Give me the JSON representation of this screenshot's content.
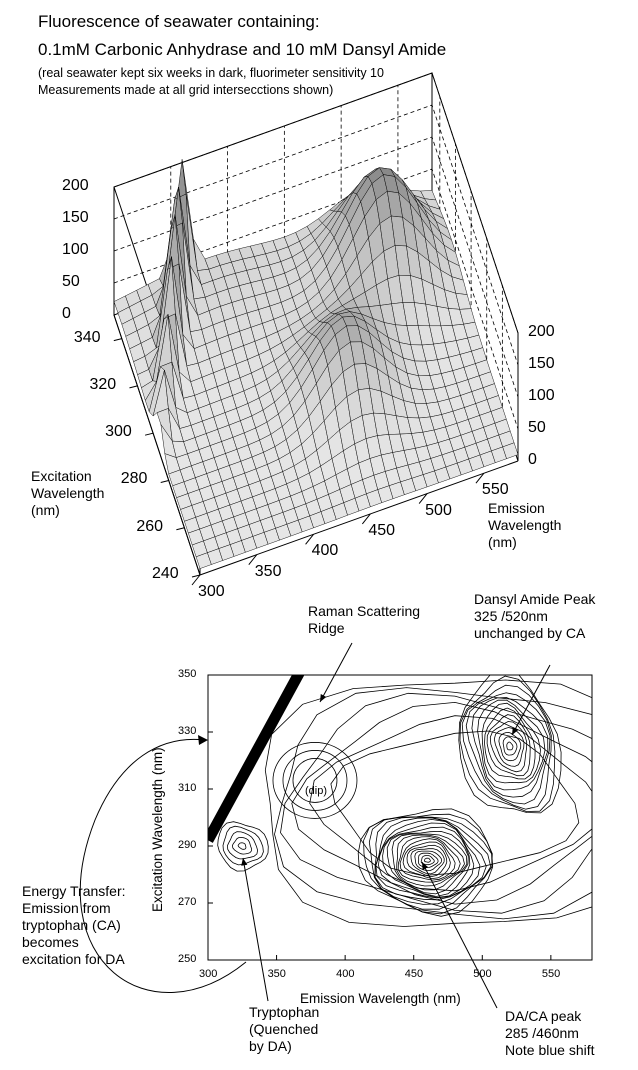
{
  "title": {
    "line1": "Fluorescence of seawater containing:",
    "line2": "0.1mM Carbonic Anhydrase and 10 mM  Dansyl Amide",
    "note1": "(real seawater kept six weeks in dark, fluorimeter sensitivity 10",
    "note2": "Measurements made at all grid intersecctions shown)"
  },
  "chart_data": [
    {
      "type": "surface3d",
      "title": "Fluorescence of seawater containing: 0.1mM Carbonic Anhydrase and 10 mM  Dansyl Amide",
      "xlabel": "Emission Wavelength (nm)",
      "ylabel": "Excitation Wavelength (nm)",
      "zticks": [
        0,
        50,
        100,
        150,
        200
      ],
      "xticks": [
        300,
        350,
        400,
        450,
        500,
        550
      ],
      "yticks": [
        240,
        260,
        280,
        300,
        320,
        340
      ],
      "xlim": [
        300,
        580
      ],
      "ylim": [
        240,
        350
      ],
      "zlim": [
        0,
        200
      ],
      "peaks": [
        {
          "name": "Dansyl Amide",
          "excitation": 325,
          "emission": 520,
          "height": 160
        },
        {
          "name": "DA/CA",
          "excitation": 285,
          "emission": 460,
          "height": 110
        }
      ],
      "raman_ridge_height": 200
    },
    {
      "type": "contour",
      "xlabel": "Emission Wavelength (nm)",
      "ylabel": "Excitation Wavelength (nm)",
      "xticks": [
        300,
        350,
        400,
        450,
        500,
        550
      ],
      "yticks": [
        250,
        270,
        290,
        310,
        330,
        350
      ],
      "xlim": [
        300,
        580
      ],
      "ylim": [
        250,
        350
      ],
      "peaks": [
        {
          "excitation": 325,
          "emission": 520
        },
        {
          "excitation": 285,
          "emission": 460
        },
        {
          "excitation": 290,
          "emission": 325
        }
      ],
      "annotations": {
        "raman": "Raman Scattering\nRidge",
        "dansyl": "Dansyl Amide Peak\n325 /520nm\nunchanged by CA",
        "dip": "(dip)",
        "energy": "Energy Transfer:\nEmission from\ntryptophan (CA)\nbecomes\nexcitation for DA",
        "tryptophan": "Tryptophan\n(Quenched\nby DA)",
        "dacapeak": "DA/CA peak\n285 /460nm\nNote blue shift"
      }
    }
  ],
  "labels": {
    "excitation3d": "Excitation\nWavelength\n(nm)",
    "emission3d": "Emission\nWavelength\n(nm)",
    "xlabel2d": "Emission Wavelength (nm)",
    "ylabel2d": "Excitation Wavelength (nm)"
  }
}
